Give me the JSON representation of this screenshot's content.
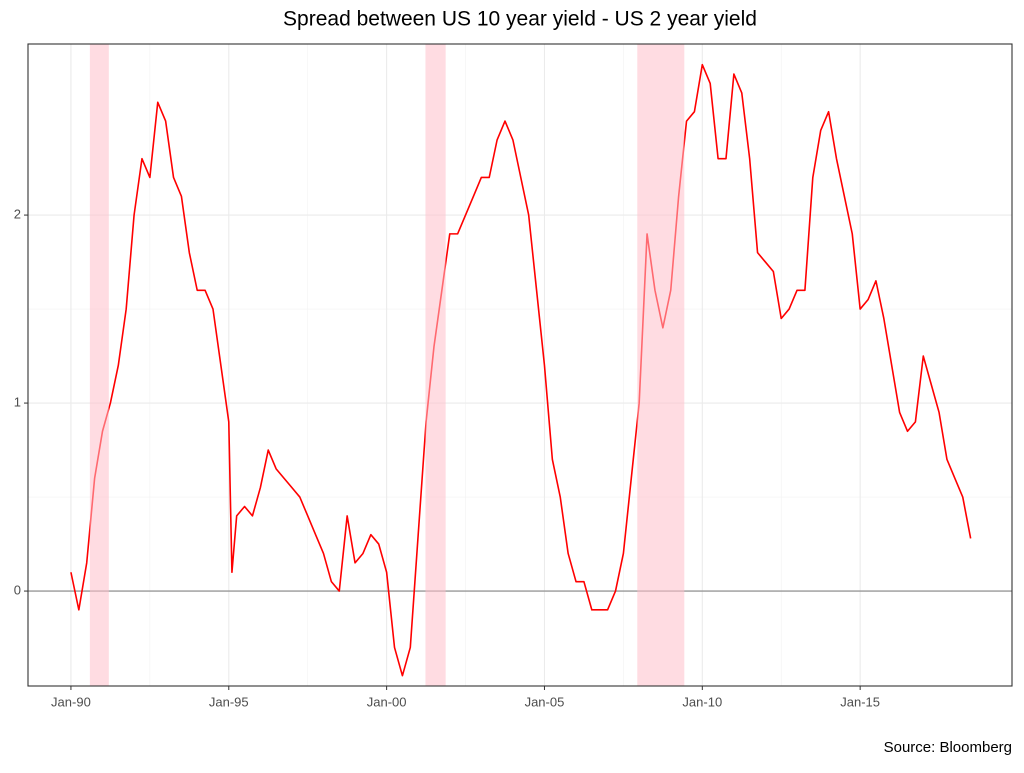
{
  "chart_data": {
    "type": "line",
    "title": "Spread between US 10 year yield - US 2 year yield",
    "caption": "Source: Bloomberg",
    "x": [
      1990.0,
      1990.25,
      1990.5,
      1990.75,
      1991.0,
      1991.25,
      1991.5,
      1991.75,
      1992.0,
      1992.25,
      1992.5,
      1992.75,
      1993.0,
      1993.25,
      1993.5,
      1993.75,
      1994.0,
      1994.25,
      1994.5,
      1994.75,
      1995.0,
      1995.1,
      1995.25,
      1995.5,
      1995.75,
      1996.0,
      1996.25,
      1996.5,
      1996.75,
      1997.0,
      1997.25,
      1997.5,
      1997.75,
      1998.0,
      1998.25,
      1998.5,
      1998.75,
      1999.0,
      1999.25,
      1999.5,
      1999.75,
      2000.0,
      2000.25,
      2000.5,
      2000.75,
      2001.0,
      2001.25,
      2001.5,
      2001.75,
      2002.0,
      2002.25,
      2002.5,
      2002.75,
      2003.0,
      2003.25,
      2003.5,
      2003.75,
      2004.0,
      2004.25,
      2004.5,
      2004.75,
      2005.0,
      2005.25,
      2005.5,
      2005.75,
      2006.0,
      2006.25,
      2006.5,
      2006.75,
      2007.0,
      2007.25,
      2007.5,
      2007.75,
      2008.0,
      2008.25,
      2008.5,
      2008.75,
      2009.0,
      2009.25,
      2009.5,
      2009.75,
      2010.0,
      2010.25,
      2010.5,
      2010.75,
      2011.0,
      2011.25,
      2011.5,
      2011.75,
      2012.0,
      2012.25,
      2012.5,
      2012.75,
      2013.0,
      2013.25,
      2013.5,
      2013.75,
      2014.0,
      2014.25,
      2014.5,
      2014.75,
      2015.0,
      2015.25,
      2015.5,
      2015.75,
      2016.0,
      2016.25,
      2016.5,
      2016.75,
      2017.0,
      2017.25,
      2017.5,
      2017.75,
      2018.0,
      2018.25,
      2018.5
    ],
    "series": [
      {
        "color": "#ff0000",
        "values": [
          0.1,
          -0.1,
          0.15,
          0.6,
          0.85,
          1.0,
          1.2,
          1.5,
          2.0,
          2.3,
          2.2,
          2.6,
          2.5,
          2.2,
          2.1,
          1.8,
          1.6,
          1.6,
          1.5,
          1.2,
          0.9,
          0.1,
          0.4,
          0.45,
          0.4,
          0.55,
          0.75,
          0.65,
          0.6,
          0.55,
          0.5,
          0.4,
          0.3,
          0.2,
          0.05,
          0.0,
          0.4,
          0.15,
          0.2,
          0.3,
          0.25,
          0.1,
          -0.3,
          -0.45,
          -0.3,
          0.3,
          0.9,
          1.3,
          1.6,
          1.9,
          1.9,
          2.0,
          2.1,
          2.2,
          2.2,
          2.4,
          2.5,
          2.4,
          2.2,
          2.0,
          1.6,
          1.2,
          0.7,
          0.5,
          0.2,
          0.05,
          0.05,
          -0.1,
          -0.1,
          -0.1,
          0.0,
          0.2,
          0.6,
          1.0,
          1.9,
          1.6,
          1.4,
          1.6,
          2.1,
          2.5,
          2.55,
          2.8,
          2.7,
          2.3,
          2.3,
          2.75,
          2.65,
          2.3,
          1.8,
          1.75,
          1.7,
          1.45,
          1.5,
          1.6,
          1.6,
          2.2,
          2.45,
          2.55,
          2.3,
          2.1,
          1.9,
          1.5,
          1.55,
          1.65,
          1.45,
          1.2,
          0.95,
          0.85,
          0.9,
          1.25,
          1.1,
          0.95,
          0.7,
          0.6,
          0.5,
          0.28
        ]
      }
    ],
    "recessions": [
      [
        1990.6,
        1991.2
      ],
      [
        2001.23,
        2001.87
      ],
      [
        2007.94,
        2009.43
      ]
    ],
    "recession_color": "#ffc0cb",
    "hline": 0,
    "xlim": [
      1988.64,
      2019.81
    ],
    "xticks": [
      {
        "value": 1990,
        "label": "Jan-90"
      },
      {
        "value": 1995,
        "label": "Jan-95"
      },
      {
        "value": 2000,
        "label": "Jan-00"
      },
      {
        "value": 2005,
        "label": "Jan-05"
      },
      {
        "value": 2010,
        "label": "Jan-10"
      },
      {
        "value": 2015,
        "label": "Jan-15"
      }
    ],
    "ylim": [
      -0.505,
      2.91
    ],
    "yticks": [
      0,
      1,
      2
    ],
    "grid": true
  }
}
